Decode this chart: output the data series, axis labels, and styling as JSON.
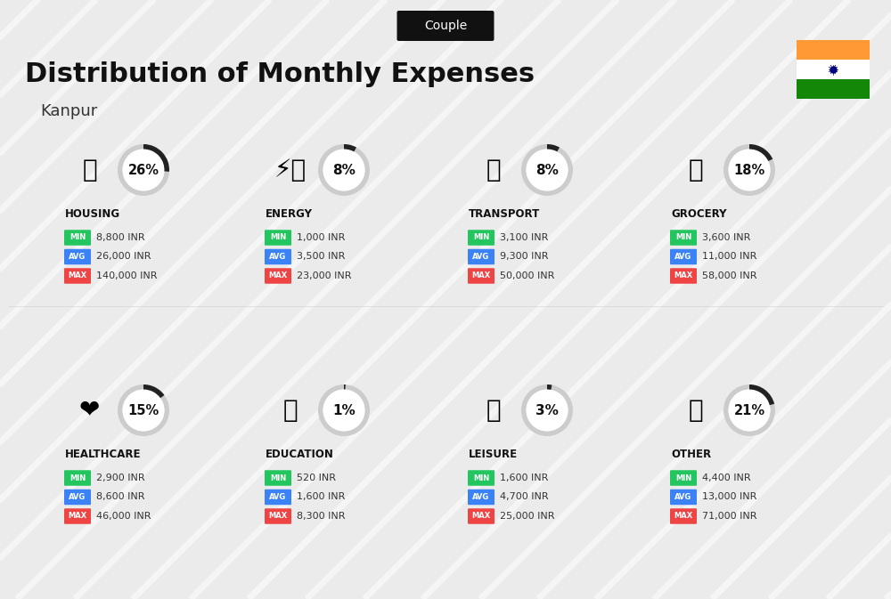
{
  "title": "Distribution of Monthly Expenses",
  "subtitle": "Kanpur",
  "tag": "Couple",
  "bg_color": "#ebebeb",
  "stripe_color": "#ffffff",
  "categories": [
    {
      "name": "HOUSING",
      "pct": 26,
      "min": "8,800 INR",
      "avg": "26,000 INR",
      "max": "140,000 INR"
    },
    {
      "name": "ENERGY",
      "pct": 8,
      "min": "1,000 INR",
      "avg": "3,500 INR",
      "max": "23,000 INR"
    },
    {
      "name": "TRANSPORT",
      "pct": 8,
      "min": "3,100 INR",
      "avg": "9,300 INR",
      "max": "50,000 INR"
    },
    {
      "name": "GROCERY",
      "pct": 18,
      "min": "3,600 INR",
      "avg": "11,000 INR",
      "max": "58,000 INR"
    },
    {
      "name": "HEALTHCARE",
      "pct": 15,
      "min": "2,900 INR",
      "avg": "8,600 INR",
      "max": "46,000 INR"
    },
    {
      "name": "EDUCATION",
      "pct": 1,
      "min": "520 INR",
      "avg": "1,600 INR",
      "max": "8,300 INR"
    },
    {
      "name": "LEISURE",
      "pct": 3,
      "min": "1,600 INR",
      "avg": "4,700 INR",
      "max": "25,000 INR"
    },
    {
      "name": "OTHER",
      "pct": 21,
      "min": "4,400 INR",
      "avg": "13,000 INR",
      "max": "71,000 INR"
    }
  ],
  "min_color": "#22c55e",
  "avg_color": "#3b82f6",
  "max_color": "#ef4444",
  "circle_edge_color": "#cccccc",
  "circle_fill": "#ffffff",
  "arc_color": "#222222",
  "tag_bg": "#111111",
  "tag_fg": "#ffffff",
  "india_orange": "#FF9933",
  "india_green": "#138808",
  "india_white": "#FFFFFF",
  "india_navy": "#000080",
  "title_color": "#111111",
  "subtitle_color": "#333333",
  "name_color": "#111111",
  "value_color": "#333333"
}
